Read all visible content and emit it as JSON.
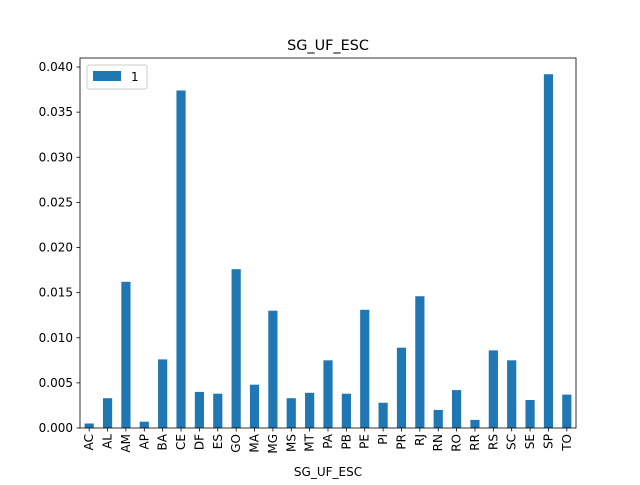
{
  "chart_data": {
    "type": "bar",
    "title": "SG_UF_ESC",
    "xlabel": "SG_UF_ESC",
    "ylabel": "",
    "ylim": [
      0,
      0.041
    ],
    "yticks": [
      "0.000",
      "0.005",
      "0.010",
      "0.015",
      "0.020",
      "0.025",
      "0.030",
      "0.035",
      "0.040"
    ],
    "grid": false,
    "legend_position": "top-left",
    "categories": [
      "AC",
      "AL",
      "AM",
      "AP",
      "BA",
      "CE",
      "DF",
      "ES",
      "GO",
      "MA",
      "MG",
      "MS",
      "MT",
      "PA",
      "PB",
      "PE",
      "PI",
      "PR",
      "RJ",
      "RN",
      "RO",
      "RR",
      "RS",
      "SC",
      "SE",
      "SP",
      "TO"
    ],
    "series": [
      {
        "name": "1",
        "color": "#1f77b4",
        "values": [
          0.0005,
          0.0033,
          0.0162,
          0.0007,
          0.0076,
          0.0374,
          0.004,
          0.0038,
          0.0176,
          0.0048,
          0.013,
          0.0033,
          0.0039,
          0.0075,
          0.0038,
          0.0131,
          0.0028,
          0.0089,
          0.0146,
          0.002,
          0.0042,
          0.0009,
          0.0086,
          0.0075,
          0.0031,
          0.0392,
          0.0037
        ]
      }
    ]
  }
}
